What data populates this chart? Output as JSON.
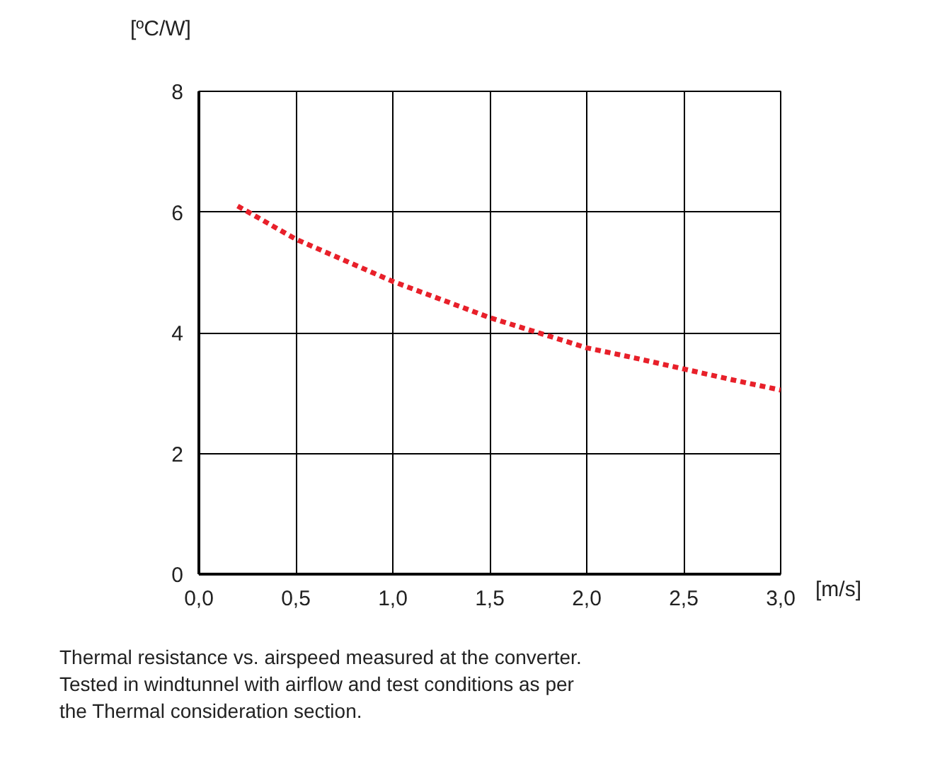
{
  "chart_data": {
    "type": "line",
    "ylabel": "[ºC/W]",
    "xlabel": "[m/s]",
    "x": [
      0.2,
      0.5,
      0.75,
      1.0,
      1.25,
      1.5,
      1.75,
      2.0,
      2.25,
      2.5,
      2.75,
      3.0
    ],
    "series": [
      {
        "color": "#e8202a",
        "values": [
          6.1,
          5.55,
          5.2,
          4.85,
          4.55,
          4.25,
          4.0,
          3.75,
          3.58,
          3.4,
          3.22,
          3.05
        ]
      }
    ],
    "line_style": "dotted",
    "xlim": [
      0,
      3
    ],
    "ylim": [
      0,
      8
    ],
    "xticks": [
      {
        "value": 0,
        "label": "0,0"
      },
      {
        "value": 0.5,
        "label": "0,5"
      },
      {
        "value": 1,
        "label": "1,0"
      },
      {
        "value": 1.5,
        "label": "1,5"
      },
      {
        "value": 2,
        "label": "2,0"
      },
      {
        "value": 2.5,
        "label": "2,5"
      },
      {
        "value": 3,
        "label": "3,0"
      }
    ],
    "yticks": [
      0,
      2,
      4,
      6,
      8
    ],
    "grid": true,
    "annotations": [
      "Thermal resistance vs. airspeed measured at the converter.\nTested in windtunnel with airflow and test conditions as per\nthe Thermal consideration section."
    ]
  }
}
